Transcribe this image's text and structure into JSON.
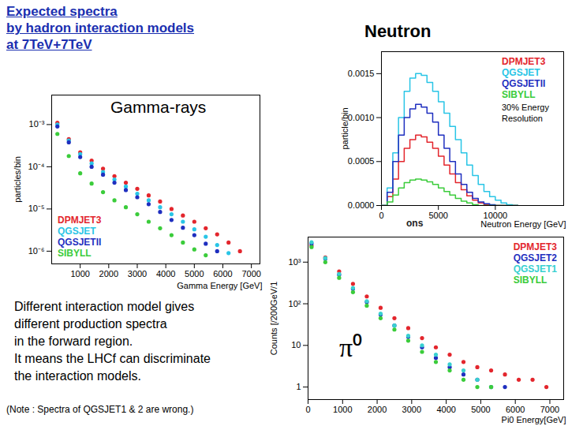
{
  "slide": {
    "title": [
      "Expected spectra",
      "by hadron interaction models",
      "at 7TeV+7TeV"
    ],
    "text": [
      "Different interaction model gives",
      "different production spectra",
      "in the forward region.",
      "It means the LHCf can discriminate",
      "the interaction models."
    ],
    "note": "(Note : Spectra of QGSJET1 & 2 are wrong.)",
    "fragment": "ons"
  },
  "chart_data": [
    {
      "type": "scatter",
      "title": "Gamma-rays",
      "xlabel": "Gamma Energy [GeV]",
      "ylabel": "particles/bin",
      "log": "y",
      "grid": false,
      "legend": "bottom-left",
      "marker": "circle",
      "xlim": [
        0,
        7300
      ],
      "xticks": [
        1000,
        2000,
        3000,
        4000,
        5000,
        6000,
        7000
      ],
      "ylim": [
        5e-07,
        0.005
      ],
      "yticks": [
        {
          "value": 1e-06,
          "label": "10⁻⁶"
        },
        {
          "value": 1e-05,
          "label": "10⁻⁵"
        },
        {
          "value": 0.0001,
          "label": "10⁻⁴"
        },
        {
          "value": 0.001,
          "label": "10⁻³"
        }
      ],
      "x": [
        200,
        600,
        1000,
        1400,
        1800,
        2200,
        2600,
        3000,
        3400,
        3800,
        4200,
        4600,
        5000,
        5400,
        5800,
        6200,
        6600
      ],
      "series": [
        {
          "name": "DPMJET3",
          "color": "#e3262d",
          "values": [
            0.0011,
            0.00045,
            0.00022,
            0.00014,
            9e-05,
            6e-05,
            4.2e-05,
            3e-05,
            2.1e-05,
            1.5e-05,
            1e-05,
            7e-06,
            5e-06,
            3.5e-06,
            2.5e-06,
            1.6e-06,
            1e-06
          ]
        },
        {
          "name": "QGSJET",
          "color": "#29c5e6",
          "values": [
            0.001,
            0.00042,
            0.0002,
            0.00012,
            7.5e-05,
            5e-05,
            3.4e-05,
            2.3e-05,
            1.6e-05,
            1.1e-05,
            7.5e-06,
            5e-06,
            3.3e-06,
            2.2e-06,
            1.4e-06,
            9e-07,
            null
          ]
        },
        {
          "name": "QGSJETII",
          "color": "#1f2fbf",
          "values": [
            0.0009,
            0.00038,
            0.00017,
            0.0001,
            6.5e-05,
            4.2e-05,
            2.8e-05,
            1.9e-05,
            1.3e-05,
            8.5e-06,
            5.5e-06,
            3.6e-06,
            2.4e-06,
            1.5e-06,
            1e-06,
            null,
            null
          ]
        },
        {
          "name": "SIBYLL",
          "color": "#3bcc3b",
          "values": [
            0.0006,
            0.00018,
            7e-05,
            4e-05,
            2.5e-05,
            1.6e-05,
            1.1e-05,
            7.5e-06,
            5e-06,
            3.5e-06,
            2.4e-06,
            1.6e-06,
            1.1e-06,
            8e-07,
            null,
            null,
            null
          ]
        }
      ]
    },
    {
      "type": "line",
      "title": "Neutron",
      "xlabel": "Neutron Energy [GeV]",
      "ylabel": "particle/bin",
      "grid": false,
      "legend": "top-right",
      "line_style": "step",
      "annotations": [
        "30% Energy Resolution"
      ],
      "xlim": [
        0,
        16000
      ],
      "xticks": [
        0,
        5000,
        10000
      ],
      "ylim": [
        0,
        0.00175
      ],
      "yticks": [
        {
          "value": 0,
          "label": "0.0000"
        },
        {
          "value": 0.0005,
          "label": "0.0005"
        },
        {
          "value": 0.001,
          "label": "0.0010"
        },
        {
          "value": 0.0015,
          "label": "0.0015"
        }
      ],
      "x": [
        0,
        500,
        1000,
        1500,
        2000,
        2500,
        3000,
        3500,
        4000,
        4500,
        5000,
        5500,
        6000,
        6500,
        7000,
        7500,
        8000,
        8500,
        9000,
        9500,
        10000,
        10500,
        11000,
        11500,
        12000
      ],
      "series": [
        {
          "name": "DPMJET3",
          "color": "#e3262d",
          "values": [
            0,
            0.0001,
            0.0003,
            0.0005,
            0.00065,
            0.00075,
            0.0008,
            0.00078,
            0.00072,
            0.00065,
            0.00056,
            0.00046,
            0.00036,
            0.00026,
            0.00018,
            0.00011,
            6e-05,
            3e-05,
            1e-05,
            0,
            0,
            0,
            0,
            0,
            0
          ]
        },
        {
          "name": "QGSJET",
          "color": "#29c5e6",
          "values": [
            0,
            0.0002,
            0.0006,
            0.001,
            0.0013,
            0.00145,
            0.0015,
            0.00148,
            0.0014,
            0.0013,
            0.00118,
            0.00105,
            0.0009,
            0.00075,
            0.0006,
            0.00046,
            0.00034,
            0.00024,
            0.00016,
            0.0001,
            6e-05,
            3e-05,
            1e-05,
            0,
            0
          ]
        },
        {
          "name": "QGSJETII",
          "color": "#1f2fbf",
          "values": [
            0,
            0.00015,
            0.0005,
            0.0008,
            0.001,
            0.0011,
            0.00115,
            0.00112,
            0.00105,
            0.00095,
            0.0008,
            0.00065,
            0.0005,
            0.00036,
            0.00024,
            0.00015,
            8e-05,
            4e-05,
            2e-05,
            1e-05,
            0,
            0,
            0,
            0,
            0
          ]
        },
        {
          "name": "SIBYLL",
          "color": "#3bcc3b",
          "values": [
            0,
            4e-05,
            0.00012,
            0.0002,
            0.00026,
            0.00029,
            0.0003,
            0.00029,
            0.00027,
            0.00024,
            0.0002,
            0.00016,
            0.00012,
            8e-05,
            5e-05,
            3e-05,
            1e-05,
            0,
            0,
            0,
            0,
            0,
            0,
            0,
            0
          ]
        }
      ]
    },
    {
      "type": "scatter",
      "title": "π⁰",
      "xlabel": "Pi0 Energy[GeV]",
      "ylabel": "Counts [/200GeV/1",
      "log": "y",
      "grid": false,
      "legend": "top-right",
      "marker": "circle",
      "xlim": [
        0,
        7400
      ],
      "xticks": [
        0,
        1000,
        2000,
        3000,
        4000,
        5000,
        6000,
        7000
      ],
      "ylim": [
        0.5,
        4000
      ],
      "yticks": [
        1,
        10,
        {
          "value": 100,
          "label": "10²"
        },
        {
          "value": 1000,
          "label": "10³"
        }
      ],
      "x": [
        100,
        500,
        900,
        1300,
        1700,
        2100,
        2500,
        2900,
        3300,
        3700,
        4100,
        4500,
        4900,
        5300,
        5700,
        6100,
        6500,
        6900
      ],
      "series": [
        {
          "name": "DPMJET3",
          "color": "#e3262d",
          "values": [
            2500,
            1300,
            600,
            300,
            150,
            80,
            45,
            26,
            15,
            9,
            6,
            4,
            3,
            2.5,
            2,
            1.5,
            1.5,
            1
          ]
        },
        {
          "name": "QGSJET2",
          "color": "#1f2fbf",
          "values": [
            2800,
            1200,
            500,
            230,
            110,
            55,
            30,
            16,
            9,
            5,
            3,
            2,
            1.5,
            1,
            1,
            null,
            null,
            null
          ]
        },
        {
          "name": "QGSJET1",
          "color": "#38d0d0",
          "values": [
            3000,
            1250,
            520,
            240,
            115,
            58,
            30,
            17,
            10,
            6,
            3.5,
            2.5,
            1.5,
            1,
            null,
            null,
            null,
            null
          ]
        },
        {
          "name": "SIBYLL",
          "color": "#3bcc3b",
          "values": [
            2300,
            1000,
            420,
            190,
            90,
            45,
            24,
            13,
            7,
            4,
            2.5,
            1.5,
            1,
            1,
            null,
            null,
            null,
            null
          ]
        }
      ]
    }
  ]
}
